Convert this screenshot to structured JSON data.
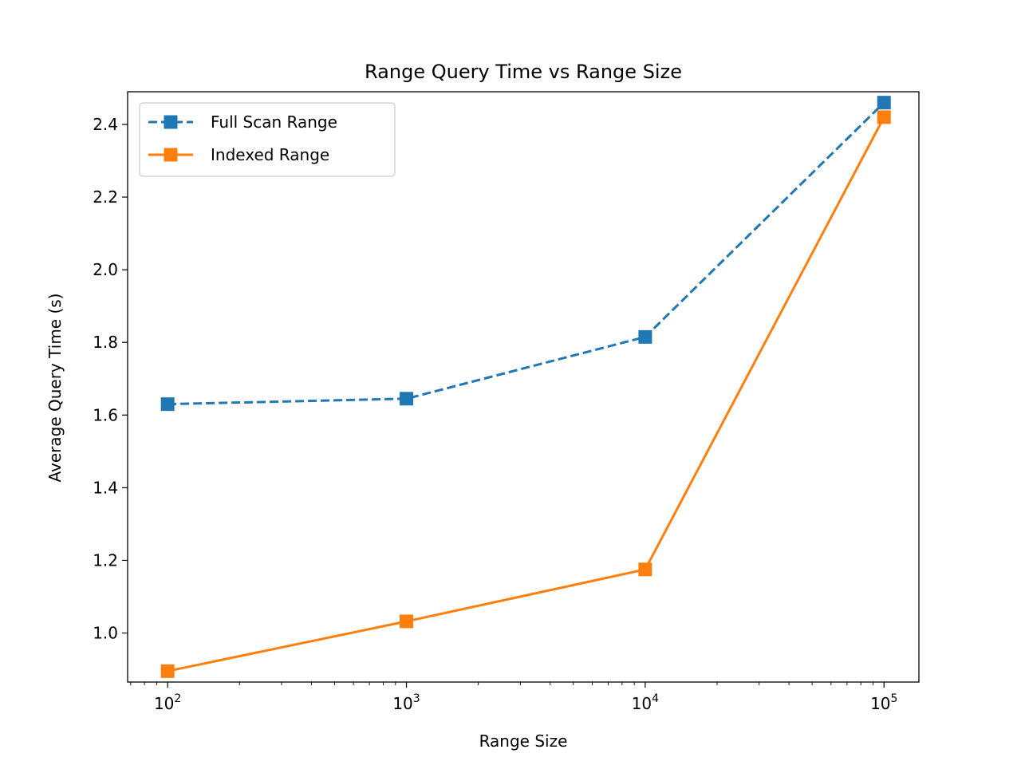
{
  "chart_data": {
    "type": "line",
    "title": "Range Query Time vs Range Size",
    "xlabel": "Range Size",
    "ylabel": "Average Query Time (s)",
    "x_scale": "log",
    "x": [
      100,
      1000,
      10000,
      100000
    ],
    "x_tick_labels": [
      {
        "base": "10",
        "exp": "2"
      },
      {
        "base": "10",
        "exp": "3"
      },
      {
        "base": "10",
        "exp": "4"
      },
      {
        "base": "10",
        "exp": "5"
      }
    ],
    "xlim": [
      68,
      140000
    ],
    "ylim": [
      0.865,
      2.49
    ],
    "y_ticks": [
      "1.0",
      "1.2",
      "1.4",
      "1.6",
      "1.8",
      "2.0",
      "2.2",
      "2.4"
    ],
    "grid": false,
    "legend_position": "top-left",
    "series": [
      {
        "name": "Full Scan Range",
        "values": [
          1.63,
          1.645,
          1.815,
          2.46
        ],
        "color": "#1f77b4",
        "line_style": "dashed",
        "marker": "square"
      },
      {
        "name": "Indexed Range",
        "values": [
          0.895,
          1.032,
          1.175,
          2.42
        ],
        "color": "#ff7f0e",
        "line_style": "solid",
        "marker": "square"
      }
    ]
  }
}
